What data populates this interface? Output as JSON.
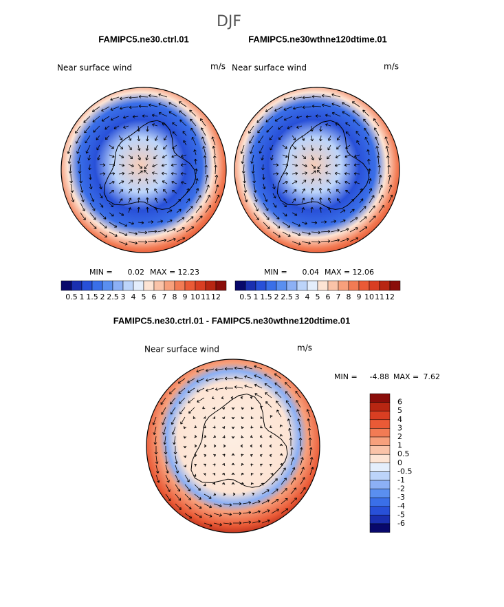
{
  "title": "DJF",
  "panels": [
    {
      "title": "FAMIPC5.ne30.ctrl.01",
      "field": "Near surface wind",
      "units": "m/s",
      "min_label": "MIN =",
      "min": 0.02,
      "max_label": "MAX =",
      "max": 12.23
    },
    {
      "title": "FAMIPC5.ne30wthne120dtime.01",
      "field": "Near surface wind",
      "units": "m/s",
      "min_label": "MIN =",
      "min": 0.04,
      "max_label": "MAX =",
      "max": 12.06
    },
    {
      "title": "FAMIPC5.ne30.ctrl.01 - FAMIPC5.ne30wthne120dtime.01",
      "field": "Near surface wind",
      "units": "m/s",
      "min_label": "MIN =",
      "min": -4.88,
      "max_label": "MAX =",
      "max": 7.62
    }
  ],
  "colorbar_wind": {
    "labels": [
      0.5,
      1,
      1.5,
      2,
      2.5,
      3,
      4,
      5,
      6,
      7,
      8,
      9,
      10,
      11,
      12
    ],
    "colors": [
      "#08086b",
      "#1a2fb0",
      "#2850d8",
      "#3a6fe8",
      "#5a8ff0",
      "#8cb0f5",
      "#bcd4fa",
      "#e4eefc",
      "#fde4d4",
      "#fac3a8",
      "#f7a07c",
      "#f27b54",
      "#ea5a36",
      "#d93e22",
      "#b82612",
      "#8a0d0a"
    ]
  },
  "colorbar_diff": {
    "labels": [
      6,
      5,
      4,
      3,
      2,
      1,
      0.5,
      0,
      -0.5,
      -1,
      -2,
      -3,
      -4,
      -5,
      -6
    ],
    "colors": [
      "#8a0d0a",
      "#b82612",
      "#d93e22",
      "#ea5a36",
      "#f27b54",
      "#f7a07c",
      "#fac3a8",
      "#fde4d4",
      "#e4eefc",
      "#bcd4fa",
      "#8cb0f5",
      "#5a8ff0",
      "#3a6fe8",
      "#2850d8",
      "#1a2fb0",
      "#08086b"
    ]
  }
}
